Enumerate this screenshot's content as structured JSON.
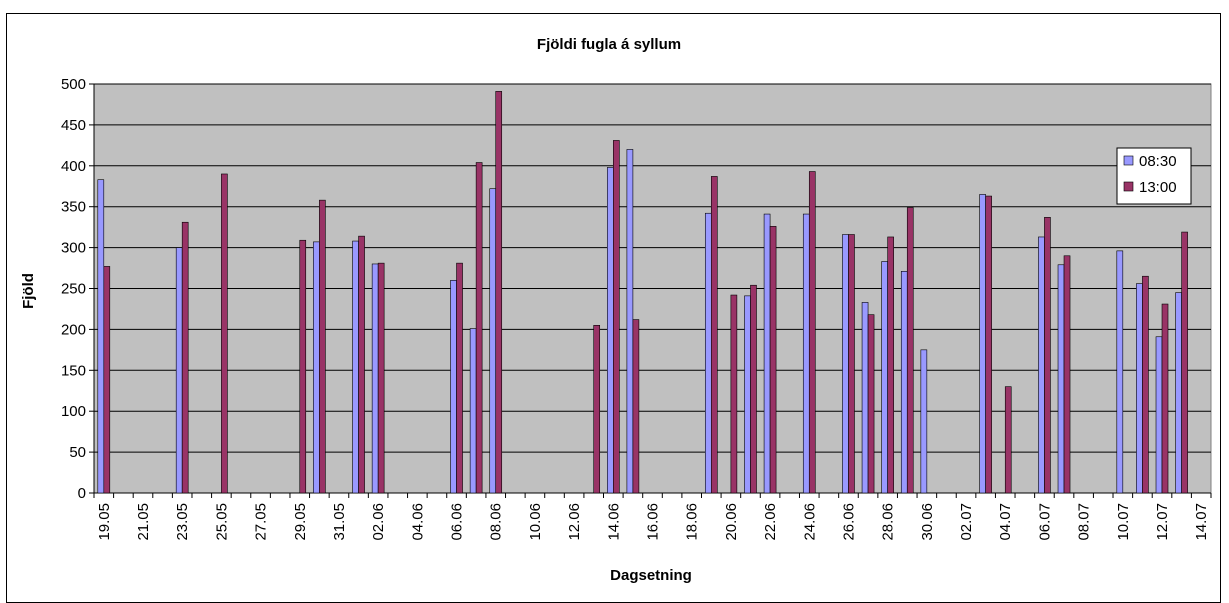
{
  "chart_data": {
    "type": "bar",
    "title": "Fjöldi fugla á syllum",
    "xlabel": "Dagsetning",
    "ylabel": "Fjöld",
    "ylim": [
      0,
      500
    ],
    "yticks": [
      0,
      50,
      100,
      150,
      200,
      250,
      300,
      350,
      400,
      450,
      500
    ],
    "grid": true,
    "legend_position": "right",
    "categories": [
      "19.05",
      "20.05",
      "21.05",
      "22.05",
      "23.05",
      "24.05",
      "25.05",
      "26.05",
      "27.05",
      "28.05",
      "29.05",
      "30.05",
      "31.05",
      "01.06",
      "02.06",
      "03.06",
      "04.06",
      "05.06",
      "06.06",
      "07.06",
      "08.06",
      "09.06",
      "10.06",
      "11.06",
      "12.06",
      "13.06",
      "14.06",
      "15.06",
      "16.06",
      "17.06",
      "18.06",
      "19.06",
      "20.06",
      "21.06",
      "22.06",
      "23.06",
      "24.06",
      "25.06",
      "26.06",
      "27.06",
      "28.06",
      "29.06",
      "30.06",
      "01.07",
      "02.07",
      "03.07",
      "04.07",
      "05.07",
      "06.07",
      "07.07",
      "08.07",
      "09.07",
      "10.07",
      "11.07",
      "12.07",
      "13.07",
      "14.07"
    ],
    "tick_labels": [
      "19.05",
      "",
      "21.05",
      "",
      "23.05",
      "",
      "25.05",
      "",
      "27.05",
      "",
      "29.05",
      "",
      "31.05",
      "",
      "02.06",
      "",
      "04.06",
      "",
      "06.06",
      "",
      "08.06",
      "",
      "10.06",
      "",
      "12.06",
      "",
      "14.06",
      "",
      "16.06",
      "",
      "18.06",
      "",
      "20.06",
      "",
      "22.06",
      "",
      "24.06",
      "",
      "26.06",
      "",
      "28.06",
      "",
      "30.06",
      "",
      "02.07",
      "",
      "04.07",
      "",
      "06.07",
      "",
      "08.07",
      "",
      "10.07",
      "",
      "12.07",
      "",
      "14.07"
    ],
    "series": [
      {
        "name": "08:30",
        "color": "#9999ff",
        "values": [
          383,
          null,
          null,
          null,
          300,
          null,
          null,
          null,
          null,
          null,
          null,
          307,
          null,
          308,
          280,
          null,
          null,
          null,
          260,
          201,
          372,
          null,
          null,
          null,
          null,
          null,
          398,
          420,
          null,
          null,
          null,
          342,
          null,
          241,
          341,
          null,
          341,
          null,
          316,
          233,
          283,
          271,
          175,
          null,
          null,
          365,
          null,
          null,
          313,
          279,
          null,
          null,
          296,
          256,
          191,
          245,
          null
        ]
      },
      {
        "name": "13:00",
        "color": "#993366",
        "values": [
          277,
          null,
          null,
          null,
          331,
          null,
          390,
          null,
          null,
          null,
          309,
          358,
          null,
          314,
          281,
          null,
          null,
          null,
          281,
          404,
          491,
          null,
          null,
          null,
          null,
          205,
          431,
          212,
          null,
          null,
          null,
          387,
          242,
          254,
          326,
          null,
          393,
          null,
          316,
          218,
          313,
          349,
          null,
          null,
          null,
          363,
          130,
          null,
          337,
          290,
          null,
          null,
          null,
          265,
          231,
          319,
          null
        ]
      }
    ]
  }
}
